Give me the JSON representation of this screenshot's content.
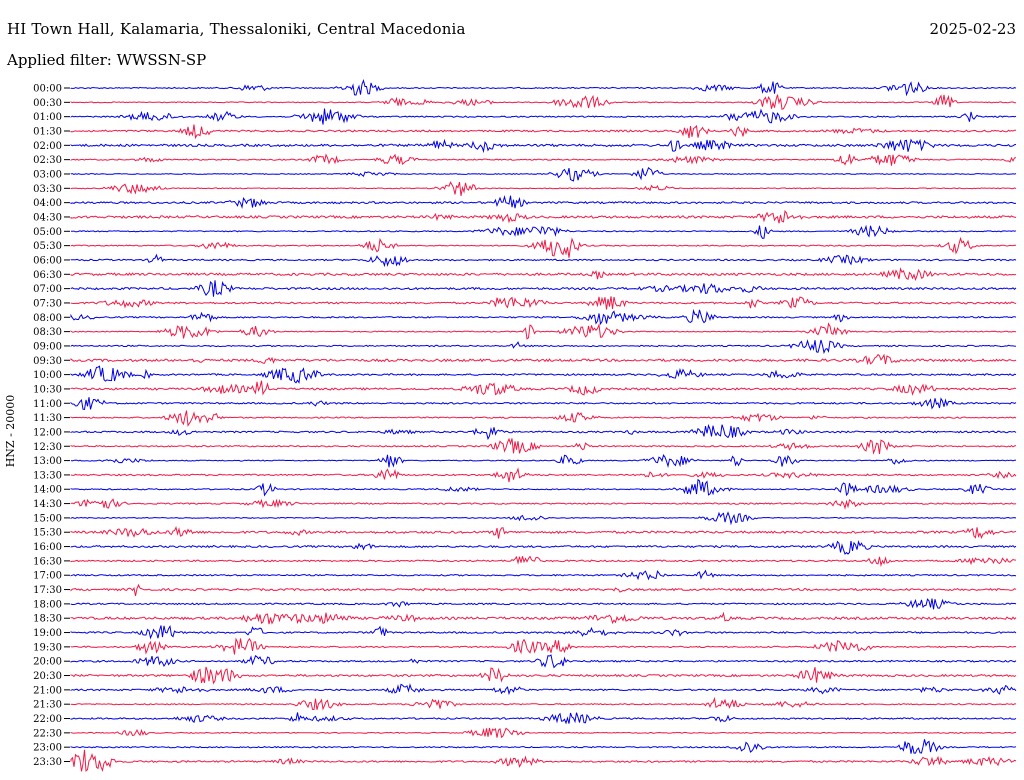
{
  "header": {
    "station": "HI Town Hall, Kalamaria, Thessaloniki, Central Macedonia",
    "date": "2025-02-23",
    "filter": "Applied filter: WWSSN-SP"
  },
  "colors": {
    "trace_a": "#0000e6",
    "trace_b": "#f01a46",
    "text": "#000000"
  },
  "chart_data": {
    "type": "line",
    "subtype": "helicorder",
    "ylabel": "HNZ - 20000",
    "row_labels": [
      "00:00",
      "00:30",
      "01:00",
      "01:30",
      "02:00",
      "02:30",
      "03:00",
      "03:30",
      "04:00",
      "04:30",
      "05:00",
      "05:30",
      "06:00",
      "06:30",
      "07:00",
      "07:30",
      "08:00",
      "08:30",
      "09:00",
      "09:30",
      "10:00",
      "10:30",
      "11:00",
      "11:30",
      "12:00",
      "12:30",
      "13:00",
      "13:30",
      "14:00",
      "14:30",
      "15:00",
      "15:30",
      "16:00",
      "16:30",
      "17:00",
      "17:30",
      "18:00",
      "18:30",
      "19:00",
      "19:30",
      "20:00",
      "20:30",
      "21:00",
      "21:30",
      "22:00",
      "22:30",
      "23:00",
      "23:30"
    ],
    "row_colors": [
      "trace_a",
      "trace_b"
    ],
    "row_duration_minutes": 30,
    "grid": false
  }
}
